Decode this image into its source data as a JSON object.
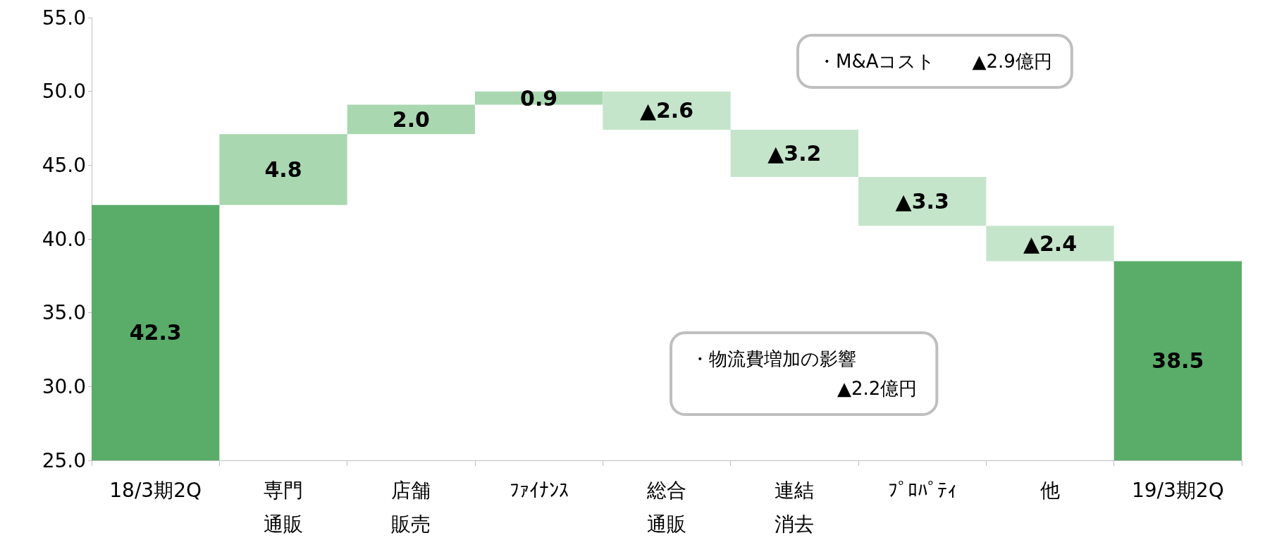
{
  "chart_data": {
    "type": "bar",
    "categories": [
      "18/3期2Q",
      "専門通販",
      "店舗販売",
      "ﾌｧｲﾅﾝｽ",
      "総合通販",
      "連結消去",
      "ﾌﾟﾛﾊﾟﾃｨ",
      "他",
      "19/3期2Q"
    ],
    "values": [
      42.3,
      4.8,
      2.0,
      0.9,
      -2.6,
      -3.2,
      -3.3,
      -2.4,
      38.5
    ],
    "base": [
      null,
      42.3,
      47.1,
      49.1,
      50.0,
      47.4,
      44.2,
      40.9,
      null
    ],
    "value_labels": [
      "42.3",
      "4.8",
      "2.0",
      "0.9",
      "▲2.6",
      "▲3.2",
      "▲3.3",
      "▲2.4",
      "38.5"
    ],
    "colors": [
      "#5aad69",
      "#a9d8b0",
      "#a9d8b0",
      "#a9d8b0",
      "#c5e5cb",
      "#c5e5cb",
      "#c5e5cb",
      "#c5e5cb",
      "#5aad69"
    ],
    "ylim": [
      25,
      55
    ],
    "yticks": [
      {
        "value": 25,
        "label": "25.0"
      },
      {
        "value": 30,
        "label": "30.0"
      },
      {
        "value": 35,
        "label": "35.0"
      },
      {
        "value": 40,
        "label": "40.0"
      },
      {
        "value": 45,
        "label": "45.0"
      },
      {
        "value": 50,
        "label": "50.0"
      },
      {
        "value": 55,
        "label": "55.0"
      }
    ],
    "grid": false,
    "annotations": [
      "・M&Aコスト　　▲2.9億円",
      "・物流費増加の影響\n　　　　　　　　▲2.2億円"
    ]
  }
}
